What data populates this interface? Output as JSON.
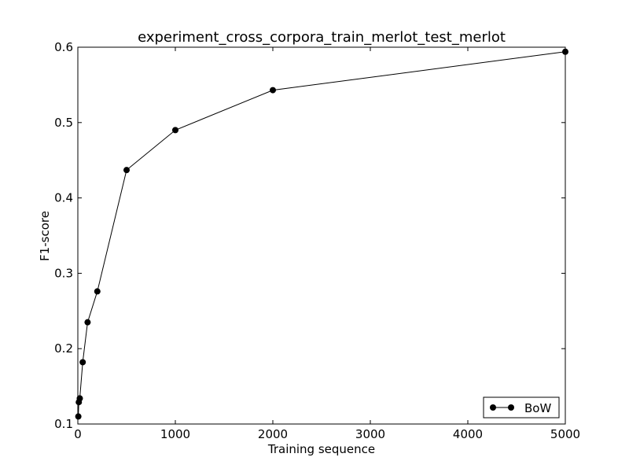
{
  "chart_data": {
    "type": "line",
    "title": "experiment_cross_corpora_train_merlot_test_merlot",
    "xlabel": "Training sequence",
    "ylabel": "F1-score",
    "xlim": [
      0,
      5000
    ],
    "ylim": [
      0.1,
      0.6
    ],
    "xticks": [
      0,
      1000,
      2000,
      3000,
      4000,
      5000
    ],
    "xtick_labels": [
      "0",
      "1000",
      "2000",
      "3000",
      "4000",
      "5000"
    ],
    "yticks": [
      0.1,
      0.2,
      0.3,
      0.4,
      0.5,
      0.6
    ],
    "ytick_labels": [
      "0.1",
      "0.2",
      "0.3",
      "0.4",
      "0.5",
      "0.6"
    ],
    "grid": false,
    "legend_position": "lower-right",
    "series": [
      {
        "name": "BoW",
        "color": "#000000",
        "marker": "circle",
        "x": [
          5,
          10,
          20,
          50,
          100,
          200,
          500,
          1000,
          2000,
          5000
        ],
        "y": [
          0.11,
          0.129,
          0.134,
          0.182,
          0.235,
          0.276,
          0.437,
          0.49,
          0.543,
          0.594
        ]
      }
    ]
  }
}
